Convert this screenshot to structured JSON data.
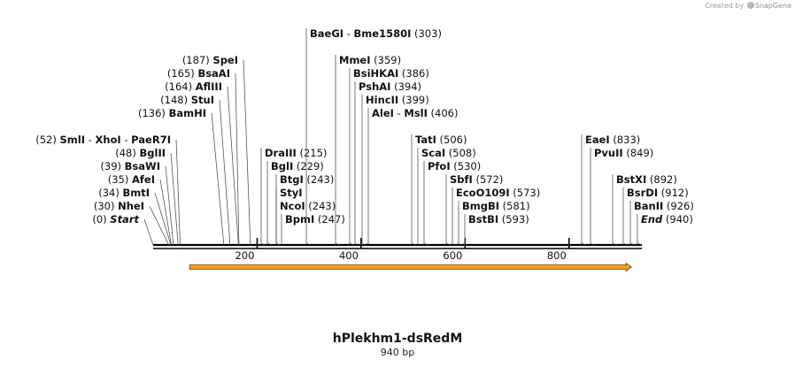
{
  "watermark": {
    "prefix": "Created by",
    "brand": "SnapGene"
  },
  "construct": {
    "name": "hPlekhm1-dsRedM",
    "length_label": "940 bp",
    "length_bp": 940
  },
  "axis": {
    "ticks": [
      200,
      400,
      600,
      800
    ]
  },
  "feature": {
    "start_bp": 70,
    "end_bp": 920,
    "color": "#f0a020",
    "edge": "#7a4a00"
  },
  "sites": [
    {
      "row": 0,
      "side": "left",
      "bp": 0,
      "pos": "(0)",
      "names": [
        "Start"
      ],
      "italic": true
    },
    {
      "row": 1,
      "side": "left",
      "bp": 30,
      "pos": "(30)",
      "names": [
        "NheI"
      ]
    },
    {
      "row": 2,
      "side": "left",
      "bp": 34,
      "pos": "(34)",
      "names": [
        "BmtI"
      ]
    },
    {
      "row": 3,
      "side": "left",
      "bp": 35,
      "pos": "(35)",
      "names": [
        "AfeI"
      ]
    },
    {
      "row": 4,
      "side": "left",
      "bp": 39,
      "pos": "(39)",
      "names": [
        "BsaWI"
      ]
    },
    {
      "row": 5,
      "side": "left",
      "bp": 48,
      "pos": "(48)",
      "names": [
        "BglII"
      ]
    },
    {
      "row": 6,
      "side": "left",
      "bp": 52,
      "pos": "(52)",
      "names": [
        "SmlI",
        "XhoI",
        "PaeR7I"
      ]
    },
    {
      "row": 8,
      "side": "left",
      "bp": 136,
      "pos": "(136)",
      "names": [
        "BamHI"
      ]
    },
    {
      "row": 9,
      "side": "left",
      "bp": 148,
      "pos": "(148)",
      "names": [
        "StuI"
      ]
    },
    {
      "row": 10,
      "side": "left",
      "bp": 164,
      "pos": "(164)",
      "names": [
        "AflIII"
      ]
    },
    {
      "row": 11,
      "side": "left",
      "bp": 165,
      "pos": "(165)",
      "names": [
        "BsaAI"
      ]
    },
    {
      "row": 12,
      "side": "left",
      "bp": 187,
      "pos": "(187)",
      "names": [
        "SpeI"
      ]
    },
    {
      "row": 0,
      "side": "right",
      "bp": 247,
      "pos": "(247)",
      "names": [
        "BpmI"
      ],
      "anchor": 322
    },
    {
      "row": 1,
      "side": "right",
      "bp": 243,
      "pos": "(243)",
      "names": [
        "NcoI"
      ],
      "anchor": 316
    },
    {
      "row": 2,
      "side": "right",
      "bp": 243,
      "pos": "",
      "names": [
        "StyI"
      ],
      "anchor": 316
    },
    {
      "row": 3,
      "side": "right",
      "bp": 243,
      "pos": "(243)",
      "names": [
        "BtgI"
      ],
      "anchor": 316
    },
    {
      "row": 4,
      "side": "right",
      "bp": 229,
      "pos": "(229)",
      "names": [
        "BglI"
      ],
      "anchor": 306
    },
    {
      "row": 5,
      "side": "right",
      "bp": 215,
      "pos": "(215)",
      "names": [
        "DraIII"
      ],
      "anchor": 299
    },
    {
      "row": 14,
      "side": "right",
      "bp": 303,
      "pos": "(303)",
      "names": [
        "BaeGI",
        "Bme1580I"
      ],
      "anchor": 350
    },
    {
      "row": 12,
      "side": "right",
      "bp": 359,
      "pos": "(359)",
      "names": [
        "MmeI"
      ],
      "anchor": 383
    },
    {
      "row": 11,
      "side": "right",
      "bp": 386,
      "pos": "(386)",
      "names": [
        "BsiHKAI"
      ],
      "anchor": 399
    },
    {
      "row": 10,
      "side": "right",
      "bp": 394,
      "pos": "(394)",
      "names": [
        "PshAI"
      ],
      "anchor": 405
    },
    {
      "row": 9,
      "side": "right",
      "bp": 399,
      "pos": "(399)",
      "names": [
        "HincII"
      ],
      "anchor": 413
    },
    {
      "row": 8,
      "side": "right",
      "bp": 406,
      "pos": "(406)",
      "names": [
        "AleI",
        "MslI"
      ],
      "anchor": 420
    },
    {
      "row": 6,
      "side": "right",
      "bp": 506,
      "pos": "(506)",
      "names": [
        "TatI"
      ],
      "anchor": 469
    },
    {
      "row": 5,
      "side": "right",
      "bp": 508,
      "pos": "(508)",
      "names": [
        "ScaI"
      ],
      "anchor": 476
    },
    {
      "row": 4,
      "side": "right",
      "bp": 530,
      "pos": "(530)",
      "names": [
        "PfoI"
      ],
      "anchor": 483
    },
    {
      "row": 3,
      "side": "right",
      "bp": 572,
      "pos": "(572)",
      "names": [
        "SbfI"
      ],
      "anchor": 508
    },
    {
      "row": 2,
      "side": "right",
      "bp": 573,
      "pos": "(573)",
      "names": [
        "EcoO109I"
      ],
      "anchor": 515
    },
    {
      "row": 1,
      "side": "right",
      "bp": 581,
      "pos": "(581)",
      "names": [
        "BmgBI"
      ],
      "anchor": 522
    },
    {
      "row": 0,
      "side": "right",
      "bp": 593,
      "pos": "(593)",
      "names": [
        "BstBI"
      ],
      "anchor": 529
    },
    {
      "row": 6,
      "side": "right",
      "bp": 833,
      "pos": "(833)",
      "names": [
        "EaeI"
      ],
      "anchor": 661
    },
    {
      "row": 5,
      "side": "right",
      "bp": 849,
      "pos": "(849)",
      "names": [
        "PvuII"
      ],
      "anchor": 671
    },
    {
      "row": 3,
      "side": "right",
      "bp": 892,
      "pos": "(892)",
      "names": [
        "BstXI"
      ],
      "anchor": 696
    },
    {
      "row": 2,
      "side": "right",
      "bp": 912,
      "pos": "(912)",
      "names": [
        "BsrDI"
      ],
      "anchor": 708
    },
    {
      "row": 1,
      "side": "right",
      "bp": 926,
      "pos": "(926)",
      "names": [
        "BanII"
      ],
      "anchor": 716
    },
    {
      "row": 0,
      "side": "right",
      "bp": 940,
      "pos": "(940)",
      "names": [
        "End"
      ],
      "italic": true,
      "anchor": 724
    }
  ]
}
